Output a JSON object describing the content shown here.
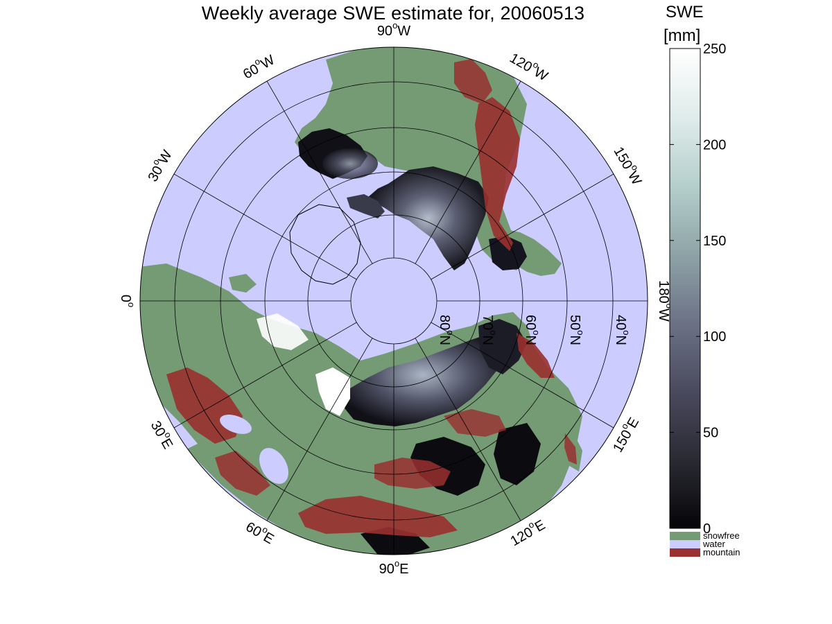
{
  "title": "Weekly average SWE estimate for, 20060513",
  "colorbar": {
    "title_line1": "SWE",
    "title_line2": "[mm]",
    "ticks": [
      "0",
      "50",
      "100",
      "150",
      "200",
      "250"
    ],
    "range": [
      0,
      250
    ],
    "gradient": [
      "#050508",
      "#2a2a33",
      "#4a4a5e",
      "#6c7286",
      "#8ea3a6",
      "#b5cfcc",
      "#dfeceb",
      "#ffffff"
    ]
  },
  "legend": [
    {
      "label": "snowfree",
      "color": "#759b75"
    },
    {
      "label": "water",
      "color": "#ccccff"
    },
    {
      "label": "mountain",
      "color": "#9a3030"
    }
  ],
  "graticule": {
    "longitudes": [
      {
        "deg": 90,
        "label_base": "90",
        "sup": "o",
        "hemi": "W"
      },
      {
        "deg": 120,
        "label_base": "120",
        "sup": "o",
        "hemi": "W"
      },
      {
        "deg": 150,
        "label_base": "150",
        "sup": "o",
        "hemi": "W"
      },
      {
        "deg": 180,
        "label_base": "180",
        "sup": "o",
        "hemi": "W"
      },
      {
        "deg": 150,
        "label_base": "150",
        "sup": "o",
        "hemi": "E"
      },
      {
        "deg": 120,
        "label_base": "120",
        "sup": "o",
        "hemi": "E"
      },
      {
        "deg": 90,
        "label_base": "90",
        "sup": "o",
        "hemi": "E"
      },
      {
        "deg": 60,
        "label_base": "60",
        "sup": "o",
        "hemi": "E"
      },
      {
        "deg": 30,
        "label_base": "30",
        "sup": "o",
        "hemi": "E"
      },
      {
        "deg": 0,
        "label_base": "0",
        "sup": "o",
        "hemi": ""
      },
      {
        "deg": 30,
        "label_base": "30",
        "sup": "o",
        "hemi": "W"
      },
      {
        "deg": 60,
        "label_base": "60",
        "sup": "o",
        "hemi": "W"
      }
    ],
    "latitudes": [
      {
        "label_base": "80",
        "sup": "o",
        "hemi": "N"
      },
      {
        "label_base": "70",
        "sup": "o",
        "hemi": "N"
      },
      {
        "label_base": "60",
        "sup": "o",
        "hemi": "N"
      },
      {
        "label_base": "50",
        "sup": "o",
        "hemi": "N"
      },
      {
        "label_base": "40",
        "sup": "o",
        "hemi": "N"
      }
    ]
  },
  "colors": {
    "water": "#ccccff",
    "snowfree": "#759b75",
    "mountain": "#9a3030",
    "snow_dark": "#0b0b10",
    "snow_mid": "#4d4f62",
    "snow_light": "#9aa6b4",
    "ice_white": "#ffffff"
  }
}
